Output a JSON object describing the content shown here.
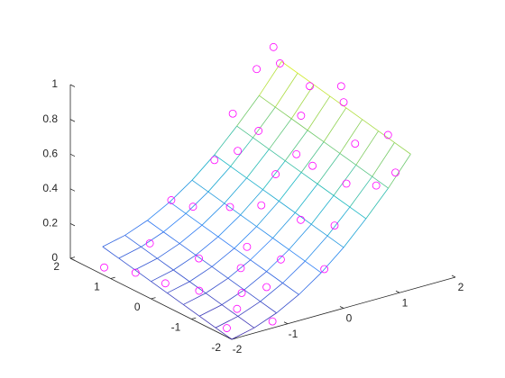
{
  "chart_data": {
    "type": "surface3d",
    "xlim": [
      -2,
      2
    ],
    "ylim": [
      -2,
      2
    ],
    "zlim": [
      0,
      1
    ],
    "xticks": [
      -2,
      -1,
      0,
      1,
      2
    ],
    "yticks": [
      -2,
      -1,
      0,
      1,
      2
    ],
    "zticks": [
      0,
      0.2,
      0.4,
      0.6,
      0.8,
      1
    ],
    "colormap": [
      "#3e26a8",
      "#2c7ef7",
      "#17b8c3",
      "#81cc59",
      "#f9fb15"
    ],
    "series": [
      {
        "type": "mesh",
        "x": [
          -2,
          -1.6,
          -1.2,
          -0.8,
          -0.4,
          0,
          0.4,
          0.8,
          1.2
        ],
        "y": [
          -2,
          -1.6,
          -1.2,
          -0.8,
          -0.4,
          0,
          0.4,
          0.8,
          1.2
        ],
        "z": [
          [
            0,
            0.03,
            0.08,
            0.15,
            0.24,
            0.35,
            0.48,
            0.62,
            0.78
          ],
          [
            0.02,
            0.05,
            0.1,
            0.17,
            0.26,
            0.37,
            0.5,
            0.64,
            0.8
          ],
          [
            0.04,
            0.07,
            0.12,
            0.19,
            0.28,
            0.39,
            0.52,
            0.66,
            0.82
          ],
          [
            0.06,
            0.09,
            0.14,
            0.21,
            0.3,
            0.41,
            0.54,
            0.68,
            0.84
          ],
          [
            0.08,
            0.11,
            0.16,
            0.23,
            0.32,
            0.43,
            0.56,
            0.7,
            0.86
          ],
          [
            0.1,
            0.13,
            0.18,
            0.25,
            0.34,
            0.45,
            0.58,
            0.72,
            0.88
          ],
          [
            0.12,
            0.15,
            0.2,
            0.27,
            0.36,
            0.47,
            0.6,
            0.74,
            0.9
          ],
          [
            0.14,
            0.17,
            0.22,
            0.29,
            0.38,
            0.49,
            0.62,
            0.76,
            0.92
          ],
          [
            0.16,
            0.19,
            0.24,
            0.31,
            0.4,
            0.51,
            0.64,
            0.78,
            0.94
          ]
        ]
      },
      {
        "type": "scatter",
        "color": "#ff00ff",
        "x": [
          -1.9,
          -1.7,
          -1.5,
          -1.8,
          -1.2,
          -1.0,
          -1.3,
          -0.8,
          -0.6,
          -0.5,
          -0.9,
          -0.2,
          -0.3,
          0.0,
          0.1,
          0.3,
          0.2,
          0.5,
          0.6,
          0.4,
          0.8,
          0.9,
          1.0,
          1.1,
          1.2,
          1.3,
          1.3,
          0.7,
          -1.6,
          -1.1,
          -0.1,
          0.9,
          1.2,
          1.4,
          -0.7,
          -1.4,
          0.2,
          -0.4,
          1.0,
          0.6
        ],
        "y": [
          1.3,
          0.8,
          -0.5,
          -1.6,
          -1.9,
          0.2,
          1.0,
          -1.2,
          0.9,
          -0.3,
          -0.7,
          -1.8,
          0.4,
          1.2,
          -0.8,
          0.1,
          -1.5,
          0.8,
          -0.4,
          1.3,
          -1.7,
          0.3,
          -0.9,
          1.1,
          0.5,
          -0.2,
          -1.3,
          -1.1,
          0.2,
          -1.0,
          -0.1,
          1.4,
          1.4,
          0.0,
          1.3,
          -1.3,
          0.9,
          -1.0,
          -1.9,
          0.0
        ],
        "z": [
          0.02,
          0.03,
          0.06,
          0.0,
          0.02,
          0.12,
          0.14,
          0.1,
          0.3,
          0.2,
          0.16,
          0.22,
          0.33,
          0.48,
          0.36,
          0.5,
          0.4,
          0.65,
          0.58,
          0.7,
          0.6,
          0.76,
          0.73,
          0.95,
          0.88,
          0.86,
          0.8,
          0.55,
          0.03,
          0.07,
          0.38,
          0.9,
          1.0,
          0.92,
          0.3,
          0.04,
          0.55,
          0.2,
          0.68,
          0.6
        ]
      }
    ]
  }
}
